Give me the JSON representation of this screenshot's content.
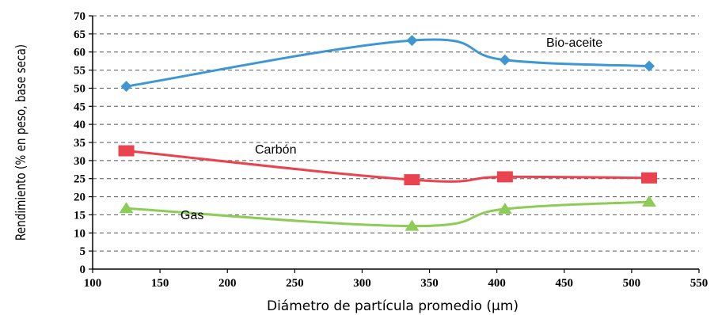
{
  "chart_data": {
    "type": "line",
    "xlabel": "Diámetro de partícula promedio (µm)",
    "ylabel": "Rendimiento (% en peso, base seca)",
    "xlim": [
      100,
      550
    ],
    "ylim": [
      0,
      70
    ],
    "x_ticks": [
      100,
      150,
      200,
      250,
      300,
      350,
      400,
      450,
      500,
      550
    ],
    "y_ticks": [
      0,
      5,
      10,
      15,
      20,
      25,
      30,
      35,
      40,
      45,
      50,
      55,
      60,
      65,
      70
    ],
    "grid": "horizontal dashed",
    "legend": "inline labels",
    "series": [
      {
        "name": "Bio-aceite",
        "color": "#3e97d3",
        "marker": "diamond",
        "x": [
          125,
          337,
          406,
          513
        ],
        "y": [
          50.5,
          63.2,
          57.8,
          56.1
        ]
      },
      {
        "name": "Carbón",
        "color": "#e9434f",
        "marker": "square",
        "x": [
          125,
          337,
          406,
          513
        ],
        "y": [
          32.7,
          24.7,
          25.5,
          25.2
        ]
      },
      {
        "name": "Gas",
        "color": "#8ccc57",
        "marker": "triangle",
        "x": [
          125,
          337,
          406,
          513
        ],
        "y": [
          16.8,
          11.9,
          16.6,
          18.6
        ]
      }
    ]
  }
}
